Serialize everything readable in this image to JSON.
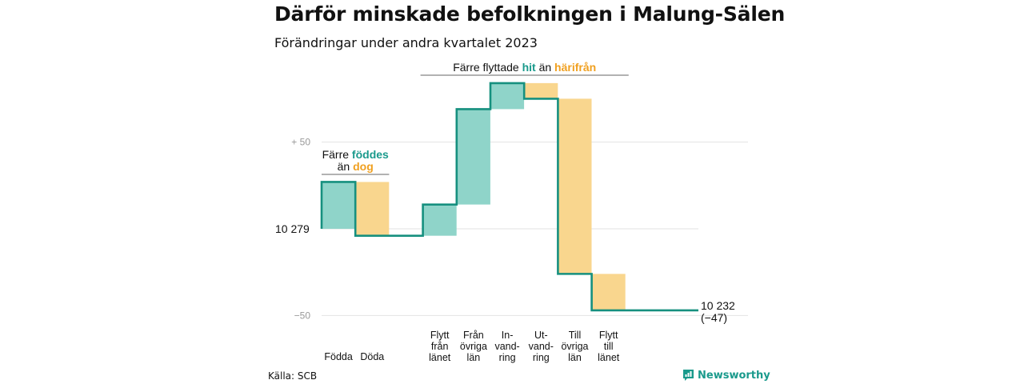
{
  "header": {
    "title": "Därför minskade befolkningen i Malung-Sälen",
    "subtitle": "Förändringar under andra kvartalet 2023"
  },
  "footer": {
    "source": "Källa: SCB",
    "brand": "Newsworthy"
  },
  "colors": {
    "increase": "#8fd4c9",
    "decrease": "#f9d68e",
    "line": "#16907f",
    "grid": "#e2e2e2",
    "tick": "#999999"
  },
  "chart_data": {
    "type": "waterfall",
    "baseline_label": "10  279",
    "y_ticks": [
      {
        "value": 50,
        "label": "+  50"
      },
      {
        "value": -50,
        "label": "−50"
      }
    ],
    "ylim": [
      -50,
      80
    ],
    "steps": [
      {
        "label": [
          "Födda"
        ],
        "value": 27
      },
      {
        "label": [
          "Döda"
        ],
        "value": -31
      },
      {
        "gap": true
      },
      {
        "label": [
          "Flytt",
          "från",
          "länet"
        ],
        "value": 18
      },
      {
        "label": [
          "Från",
          "övriga",
          "län"
        ],
        "value": 55
      },
      {
        "label": [
          "In-",
          "vand-",
          "ring"
        ],
        "value": 15
      },
      {
        "label": [
          "Ut-",
          "vand-",
          "ring"
        ],
        "value": -9
      },
      {
        "label": [
          "Till",
          "övriga",
          "län"
        ],
        "value": -101
      },
      {
        "label": [
          "Flytt",
          "till",
          "länet"
        ],
        "value": -21
      }
    ],
    "end_label": [
      "10 232",
      "(−47)"
    ],
    "annotations": [
      {
        "parts": [
          [
            "Färre ",
            ""
          ],
          [
            "föddes",
            "in"
          ]
        ],
        "parts2": [
          [
            "än ",
            ""
          ],
          [
            "dog",
            "out"
          ]
        ],
        "from_step": 0,
        "to_step": 1
      },
      {
        "parts": [
          [
            "Färre flyttade ",
            ""
          ],
          [
            "hit",
            "in"
          ],
          [
            " än ",
            ""
          ],
          [
            "härifrån",
            "out"
          ]
        ],
        "from_step": 3,
        "to_step": 8
      }
    ]
  }
}
